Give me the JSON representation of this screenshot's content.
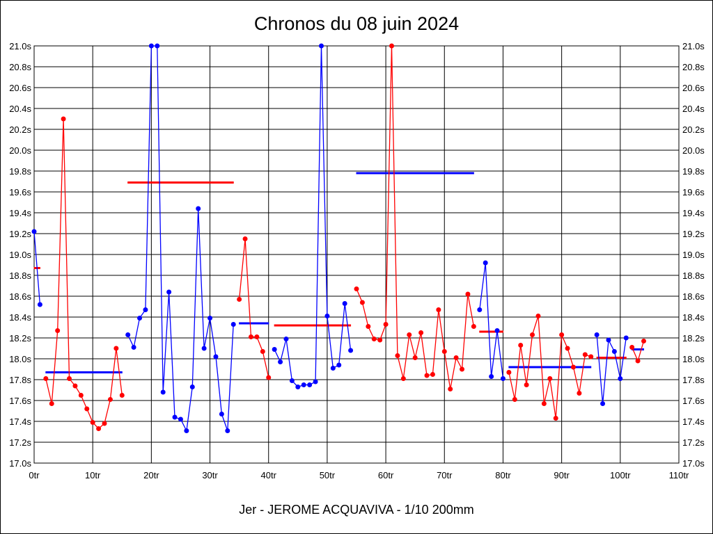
{
  "chart_data": {
    "type": "line",
    "title": "Chronos du 08 juin 2024",
    "xlabel": "Jer - JEROME ACQUAVIVA - 1/10 200mm",
    "ylabel": "",
    "xlim": [
      0,
      110
    ],
    "ylim": [
      17.0,
      21.0
    ],
    "grid": true,
    "x_ticks": [
      "0tr",
      "10tr",
      "20tr",
      "30tr",
      "40tr",
      "50tr",
      "60tr",
      "70tr",
      "80tr",
      "90tr",
      "100tr",
      "110tr"
    ],
    "y_ticks": [
      "17.0s",
      "17.2s",
      "17.4s",
      "17.6s",
      "17.8s",
      "18.0s",
      "18.2s",
      "18.4s",
      "18.6s",
      "18.8s",
      "19.0s",
      "19.2s",
      "19.4s",
      "19.6s",
      "19.8s",
      "20.0s",
      "20.2s",
      "20.4s",
      "20.6s",
      "20.8s",
      "21.0s"
    ],
    "colors": {
      "blue": "#0000ff",
      "red": "#ff0000"
    },
    "series": [
      {
        "name": "run-1",
        "color": "blue",
        "start_lap": 0,
        "values": [
          19.22,
          18.52
        ],
        "average": 18.87,
        "average_color": "red"
      },
      {
        "name": "run-2",
        "color": "red",
        "start_lap": 2,
        "values": [
          17.81,
          17.57,
          18.27,
          20.3,
          17.81,
          17.74,
          17.65,
          17.52,
          17.39,
          17.33,
          17.38,
          17.61,
          18.1,
          17.65
        ],
        "average": 17.87,
        "average_color": "blue"
      },
      {
        "name": "run-3",
        "color": "blue",
        "start_lap": 16,
        "values": [
          18.23,
          18.11,
          18.39,
          18.47,
          21.0,
          21.0,
          17.68,
          18.64,
          17.44,
          17.42,
          17.31,
          17.73,
          19.44,
          18.1,
          18.39,
          18.02,
          17.47,
          17.31,
          18.33
        ],
        "average": 19.69,
        "average_color": "red"
      },
      {
        "name": "run-4",
        "color": "red",
        "start_lap": 35,
        "values": [
          18.57,
          19.15,
          18.21,
          18.21,
          18.07,
          17.82
        ],
        "average": 18.34,
        "average_color": "blue"
      },
      {
        "name": "run-5",
        "color": "blue",
        "start_lap": 41,
        "values": [
          18.09,
          17.97,
          18.19,
          17.79,
          17.73,
          17.75,
          17.75,
          17.78,
          21.0,
          18.41,
          17.91,
          17.94,
          18.53,
          18.08
        ],
        "average": 18.32,
        "average_color": "red"
      },
      {
        "name": "run-6",
        "color": "red",
        "start_lap": 55,
        "values": [
          18.67,
          18.54,
          18.31,
          18.19,
          18.18,
          18.33,
          21.0,
          18.03,
          17.81,
          18.23,
          18.01,
          18.25,
          17.84,
          17.85,
          18.47,
          18.07,
          17.71,
          18.01,
          17.9,
          18.62,
          18.31
        ],
        "average": 19.78,
        "average_color": "blue"
      },
      {
        "name": "run-7",
        "color": "blue",
        "start_lap": 76,
        "values": [
          18.47,
          18.92,
          17.83,
          18.27,
          17.81
        ],
        "average": 18.26,
        "average_color": "red"
      },
      {
        "name": "run-8",
        "color": "red",
        "start_lap": 81,
        "values": [
          17.87,
          17.61,
          18.13,
          17.75,
          18.23,
          18.41,
          17.57,
          17.81,
          17.43,
          18.23,
          18.1,
          17.92,
          17.67,
          18.04,
          18.02
        ],
        "average": 17.92,
        "average_color": "blue"
      },
      {
        "name": "run-9",
        "color": "blue",
        "start_lap": 96,
        "values": [
          18.23,
          17.57,
          18.18,
          18.07,
          17.81,
          18.2
        ],
        "average": 18.01,
        "average_color": "red"
      },
      {
        "name": "run-10",
        "color": "red",
        "start_lap": 102,
        "values": [
          18.11,
          17.98,
          18.17
        ],
        "average": 18.09,
        "average_color": "blue"
      }
    ]
  }
}
